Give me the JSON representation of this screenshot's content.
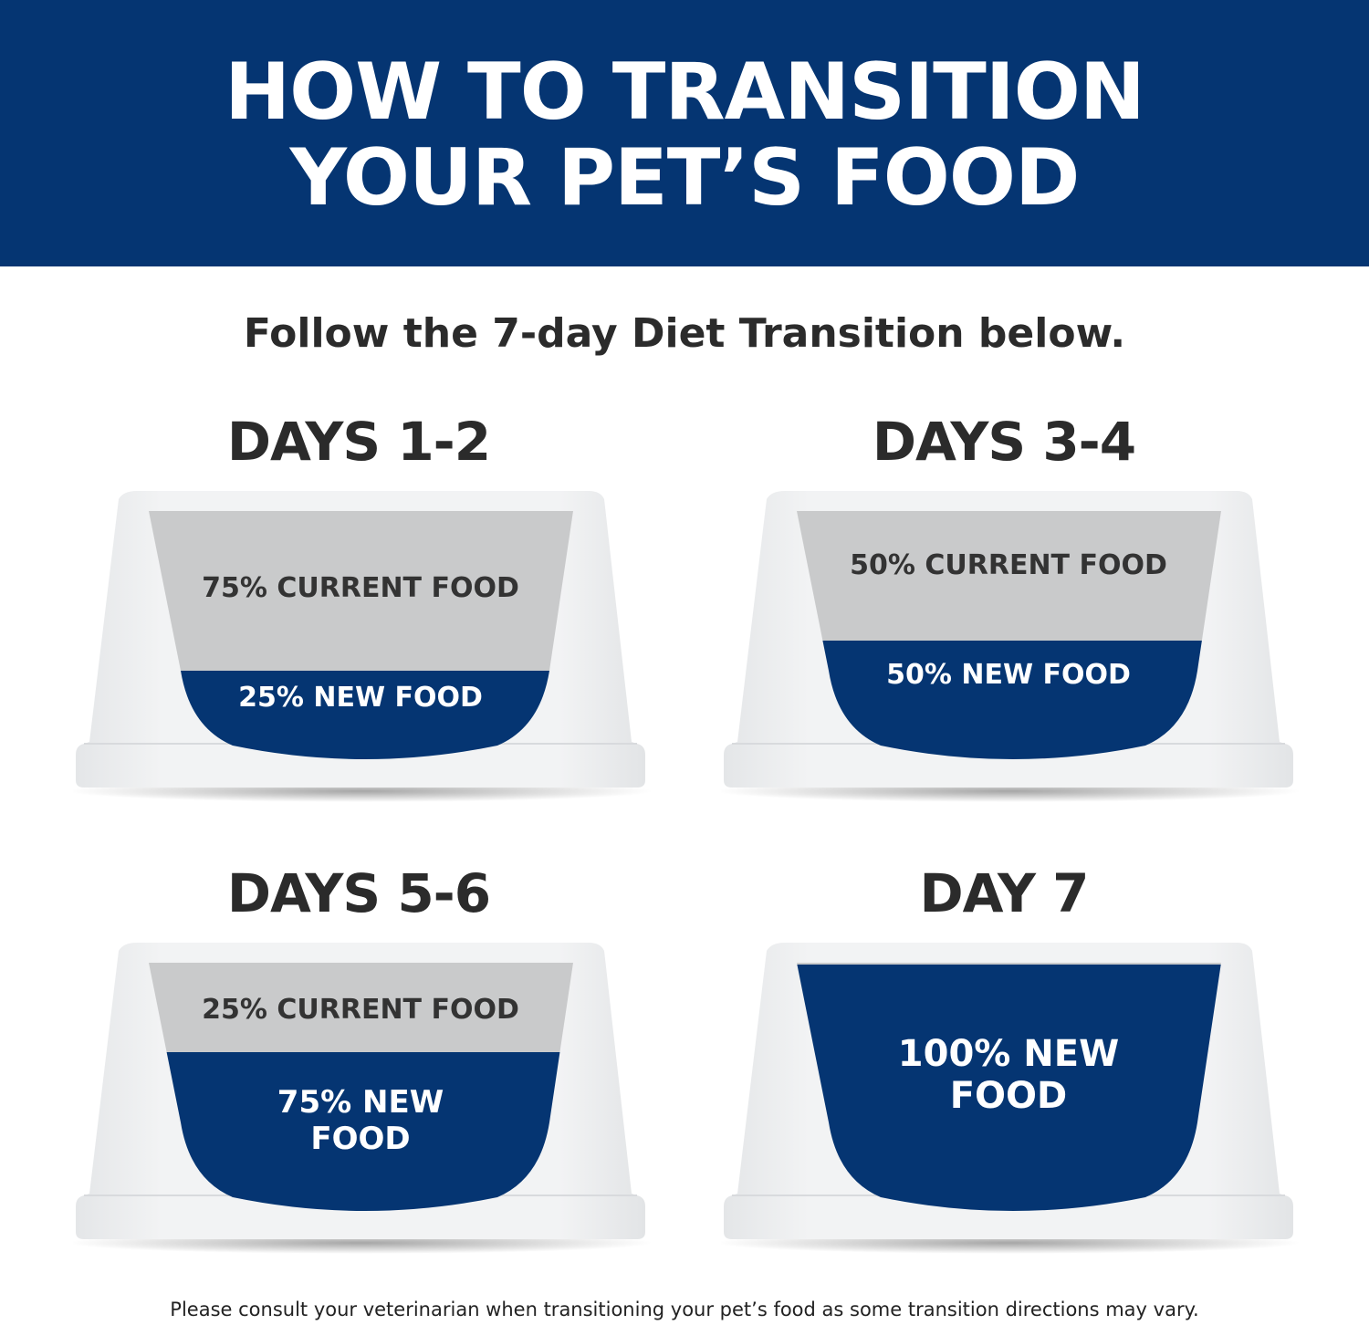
{
  "header": {
    "title_line1": "HOW TO TRANSITION",
    "title_line2": "YOUR PET’S FOOD"
  },
  "subtitle": "Follow the 7-day Diet Transition below.",
  "colors": {
    "brand_blue": "#053572",
    "current_food_gray": "#c9cacb",
    "bowl_white": "#f2f3f4",
    "text_dark": "#2b2b2b"
  },
  "stages": [
    {
      "heading": "DAYS 1-2",
      "current_pct": 75,
      "new_pct": 25,
      "current_label": "75% CURRENT FOOD",
      "new_label": "25% NEW FOOD"
    },
    {
      "heading": "DAYS 3-4",
      "current_pct": 50,
      "new_pct": 50,
      "current_label": "50% CURRENT FOOD",
      "new_label": "50% NEW FOOD"
    },
    {
      "heading": "DAYS 5-6",
      "current_pct": 25,
      "new_pct": 75,
      "current_label": "25% CURRENT FOOD",
      "new_label": "75% NEW FOOD"
    },
    {
      "heading": "DAY 7",
      "current_pct": 0,
      "new_pct": 100,
      "new_label": "100% NEW FOOD"
    }
  ],
  "footer": "Please consult your veterinarian when transitioning your pet’s food as some transition directions may vary."
}
